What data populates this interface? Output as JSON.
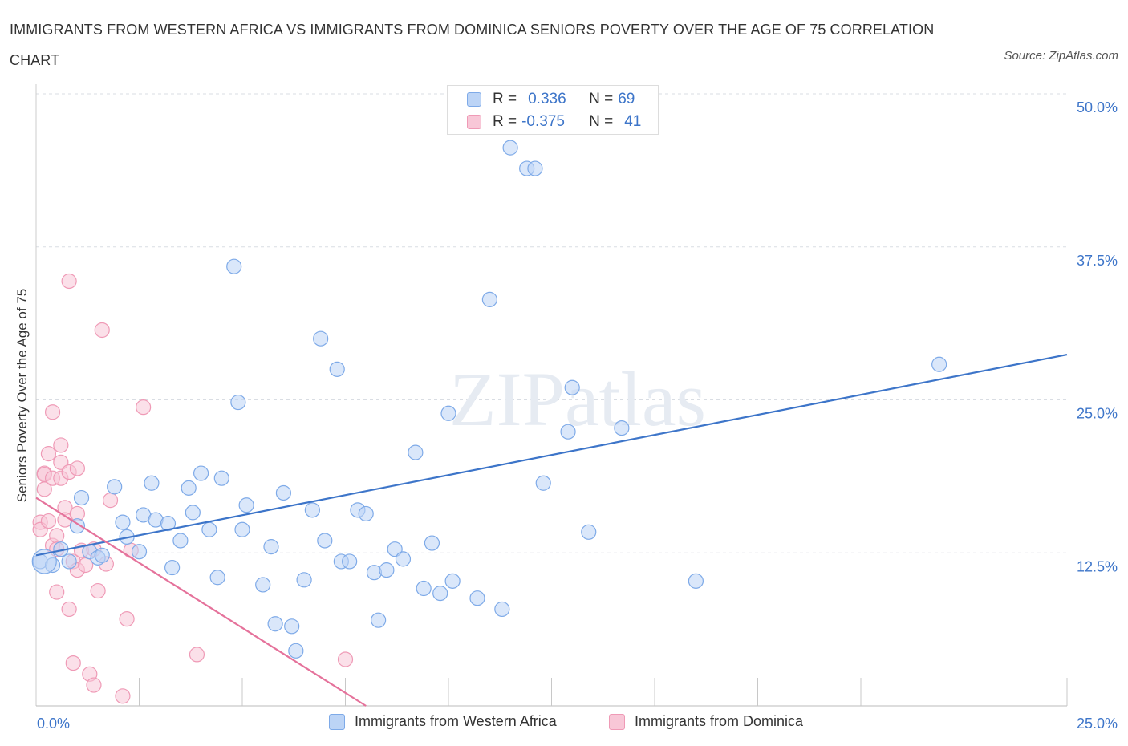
{
  "title": "IMMIGRANTS FROM WESTERN AFRICA VS IMMIGRANTS FROM DOMINICA SENIORS POVERTY OVER THE AGE OF 75 CORRELATION CHART",
  "source": "Source: ZipAtlas.com",
  "watermark": "ZIPatlas",
  "legend": {
    "row1": {
      "r_label": "R =",
      "r_value": "0.336",
      "n_label": "N =",
      "n_value": "69"
    },
    "row2": {
      "r_label": "R =",
      "r_value": "-0.375",
      "n_label": "N =",
      "n_value": "41"
    }
  },
  "colors": {
    "blue": "#3d75c9",
    "blue_fill": "#bcd4f6",
    "pink": "#e5729b",
    "pink_fill": "#f8c7d7",
    "value_text": "#3d75c9"
  },
  "chart_data": {
    "type": "scatter",
    "xlabel": "",
    "ylabel": "Seniors Poverty Over the Age of 75",
    "xlim": [
      0,
      25
    ],
    "ylim": [
      0,
      50
    ],
    "x_tick_labels": [
      "0.0%",
      "25.0%"
    ],
    "y_tick_labels": [
      "12.5%",
      "25.0%",
      "37.5%",
      "50.0%"
    ],
    "y_ticks": [
      12.5,
      25.0,
      37.5,
      50.0
    ],
    "grid": true,
    "legend_position": "bottom",
    "series": [
      {
        "name": "Immigrants from Western Africa",
        "color": "#3d75c9",
        "trend": {
          "x": [
            0,
            25
          ],
          "y": [
            12.3,
            28.7
          ]
        },
        "points": [
          [
            0.1,
            11.8
          ],
          [
            0.4,
            11.5
          ],
          [
            0.6,
            12.8
          ],
          [
            0.8,
            11.8
          ],
          [
            1.0,
            14.7
          ],
          [
            1.1,
            17.0
          ],
          [
            1.3,
            12.6
          ],
          [
            1.5,
            12.1
          ],
          [
            1.6,
            12.3
          ],
          [
            1.9,
            17.9
          ],
          [
            2.1,
            15.0
          ],
          [
            2.2,
            13.8
          ],
          [
            2.5,
            12.6
          ],
          [
            2.6,
            15.6
          ],
          [
            2.8,
            18.2
          ],
          [
            2.9,
            15.2
          ],
          [
            3.2,
            14.9
          ],
          [
            3.3,
            11.3
          ],
          [
            3.5,
            13.5
          ],
          [
            3.7,
            17.8
          ],
          [
            3.8,
            15.8
          ],
          [
            4.0,
            19.0
          ],
          [
            4.2,
            14.4
          ],
          [
            4.4,
            10.5
          ],
          [
            4.5,
            18.6
          ],
          [
            4.8,
            35.9
          ],
          [
            4.9,
            24.8
          ],
          [
            5.0,
            14.4
          ],
          [
            5.1,
            16.4
          ],
          [
            5.5,
            9.9
          ],
          [
            5.7,
            13.0
          ],
          [
            5.8,
            6.7
          ],
          [
            6.0,
            17.4
          ],
          [
            6.2,
            6.5
          ],
          [
            6.3,
            4.5
          ],
          [
            6.5,
            10.3
          ],
          [
            6.7,
            16.0
          ],
          [
            6.9,
            30.0
          ],
          [
            7.0,
            13.5
          ],
          [
            7.3,
            27.5
          ],
          [
            7.4,
            11.8
          ],
          [
            7.6,
            11.8
          ],
          [
            7.8,
            16.0
          ],
          [
            8.0,
            15.7
          ],
          [
            8.2,
            10.9
          ],
          [
            8.3,
            7.0
          ],
          [
            8.5,
            11.1
          ],
          [
            8.7,
            12.8
          ],
          [
            8.9,
            12.0
          ],
          [
            9.2,
            20.7
          ],
          [
            9.4,
            9.6
          ],
          [
            9.6,
            13.3
          ],
          [
            9.8,
            9.2
          ],
          [
            10.0,
            23.9
          ],
          [
            10.1,
            10.2
          ],
          [
            10.7,
            8.8
          ],
          [
            11.0,
            33.2
          ],
          [
            11.3,
            7.9
          ],
          [
            11.5,
            45.6
          ],
          [
            11.9,
            43.9
          ],
          [
            12.1,
            43.9
          ],
          [
            12.3,
            18.2
          ],
          [
            12.9,
            22.4
          ],
          [
            13.0,
            26.0
          ],
          [
            13.4,
            14.2
          ],
          [
            14.2,
            22.7
          ],
          [
            16.0,
            10.2
          ],
          [
            21.9,
            27.9
          ],
          [
            0.2,
            11.8
          ]
        ]
      },
      {
        "name": "Immigrants from Dominica",
        "color": "#e5729b",
        "trend": {
          "x": [
            0,
            8.0
          ],
          "y": [
            17.0,
            0.0
          ]
        },
        "points": [
          [
            0.1,
            15.0
          ],
          [
            0.1,
            14.4
          ],
          [
            0.2,
            19.0
          ],
          [
            0.2,
            18.9
          ],
          [
            0.2,
            17.7
          ],
          [
            0.3,
            20.6
          ],
          [
            0.3,
            15.1
          ],
          [
            0.4,
            13.1
          ],
          [
            0.4,
            18.6
          ],
          [
            0.4,
            24.0
          ],
          [
            0.5,
            13.9
          ],
          [
            0.5,
            12.8
          ],
          [
            0.5,
            9.3
          ],
          [
            0.6,
            21.3
          ],
          [
            0.6,
            19.9
          ],
          [
            0.6,
            18.6
          ],
          [
            0.7,
            16.2
          ],
          [
            0.7,
            15.2
          ],
          [
            0.8,
            34.7
          ],
          [
            0.8,
            7.9
          ],
          [
            0.8,
            19.1
          ],
          [
            0.9,
            11.8
          ],
          [
            0.9,
            3.5
          ],
          [
            1.0,
            15.7
          ],
          [
            1.0,
            19.4
          ],
          [
            1.0,
            11.1
          ],
          [
            1.1,
            12.7
          ],
          [
            1.2,
            11.5
          ],
          [
            1.3,
            2.6
          ],
          [
            1.4,
            1.7
          ],
          [
            1.4,
            12.8
          ],
          [
            1.5,
            9.4
          ],
          [
            1.6,
            30.7
          ],
          [
            1.7,
            11.6
          ],
          [
            1.8,
            16.8
          ],
          [
            2.1,
            0.8
          ],
          [
            2.2,
            7.1
          ],
          [
            2.3,
            12.7
          ],
          [
            2.6,
            24.4
          ],
          [
            3.9,
            4.2
          ],
          [
            7.5,
            3.8
          ]
        ]
      }
    ]
  }
}
